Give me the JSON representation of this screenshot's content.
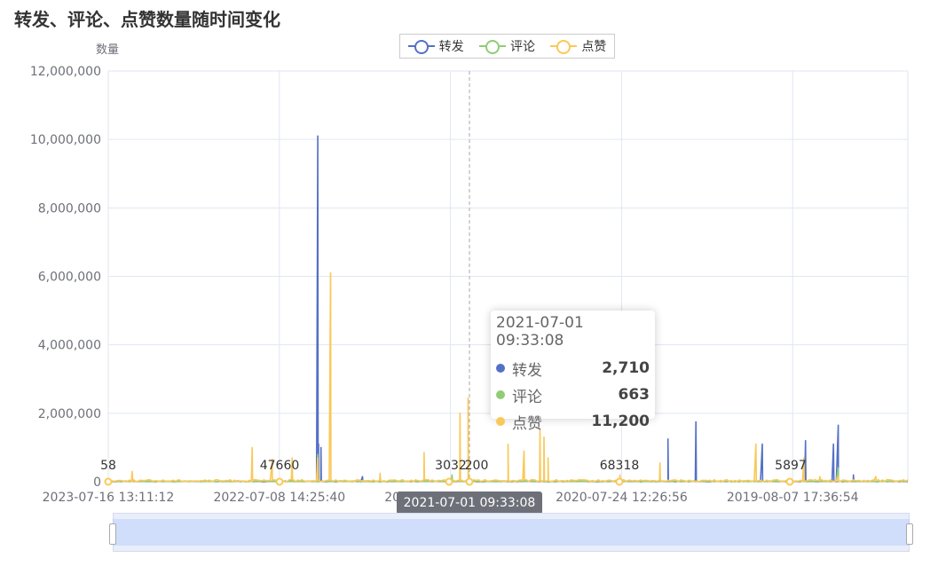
{
  "title": "转发、评论、点赞数量随时间变化",
  "tooltip": {
    "title": "2021-07-01 09:33:08",
    "rows": [
      {
        "name": "转发",
        "value": "2,710",
        "color": "#5470c6"
      },
      {
        "name": "评论",
        "value": "663",
        "color": "#91cc75"
      },
      {
        "name": "点赞",
        "value": "11,200",
        "color": "#fac858"
      }
    ]
  },
  "axis_pointer_label": "2021-07-01 09:33:08",
  "chart_data": {
    "type": "line",
    "title": "转发、评论、点赞数量随时间变化",
    "ylabel": "数量",
    "ylim": [
      0,
      12000000
    ],
    "yticks": [
      "0",
      "2,000,000",
      "4,000,000",
      "6,000,000",
      "8,000,000",
      "10,000,000",
      "12,000,000"
    ],
    "xtick_labels": [
      "2023-07-16 13:11:12",
      "2022-07-08 14:25:40",
      "2021-07-01 09:33:08",
      "2020-07-24 12:26:56",
      "2019-08-07 17:36:54"
    ],
    "legend": [
      "转发",
      "评论",
      "点赞"
    ],
    "legend_position": "top-center",
    "grid": true,
    "point_labels": [
      "58",
      "47660",
      "3032",
      "200",
      "68318",
      "5897"
    ],
    "series": [
      {
        "name": "转发",
        "color": "#5470c6",
        "spikes": [
          [
            0.262,
            10100000
          ],
          [
            0.263,
            1100000
          ],
          [
            0.266,
            1000000
          ],
          [
            0.318,
            150000
          ],
          [
            0.7,
            1250000
          ],
          [
            0.735,
            1750000
          ],
          [
            0.818,
            1100000
          ],
          [
            0.872,
            1200000
          ],
          [
            0.907,
            1100000
          ],
          [
            0.913,
            1650000
          ],
          [
            0.932,
            200000
          ]
        ]
      },
      {
        "name": "评论",
        "color": "#91cc75",
        "spikes": [
          [
            0.262,
            800000
          ],
          [
            0.43,
            200000
          ],
          [
            0.913,
            400000
          ]
        ]
      },
      {
        "name": "点赞",
        "color": "#fac858",
        "spikes": [
          [
            0.03,
            300000
          ],
          [
            0.18,
            1000000
          ],
          [
            0.205,
            650000
          ],
          [
            0.23,
            700000
          ],
          [
            0.262,
            700000
          ],
          [
            0.278,
            6100000
          ],
          [
            0.34,
            250000
          ],
          [
            0.395,
            850000
          ],
          [
            0.44,
            2000000
          ],
          [
            0.45,
            2450000
          ],
          [
            0.5,
            1100000
          ],
          [
            0.52,
            900000
          ],
          [
            0.54,
            1500000
          ],
          [
            0.545,
            1300000
          ],
          [
            0.55,
            700000
          ],
          [
            0.64,
            200000
          ],
          [
            0.69,
            550000
          ],
          [
            0.81,
            1100000
          ],
          [
            0.87,
            700000
          ],
          [
            0.89,
            150000
          ],
          [
            0.913,
            150000
          ],
          [
            0.96,
            150000
          ]
        ]
      }
    ]
  }
}
